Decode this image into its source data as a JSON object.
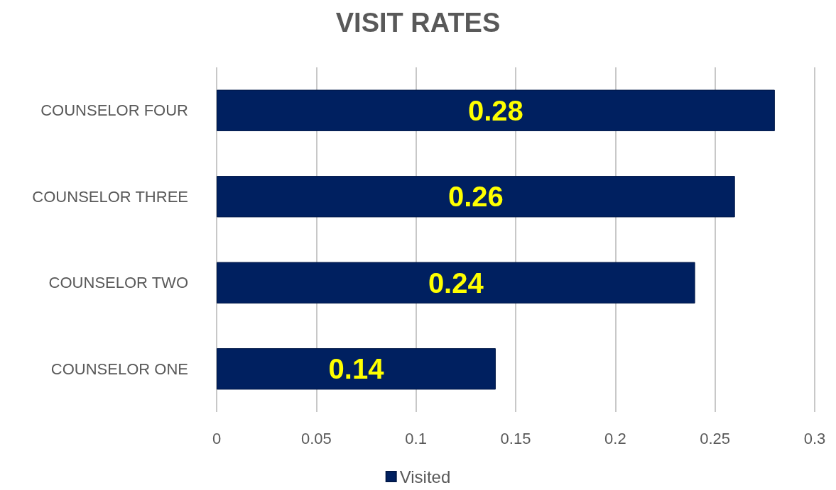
{
  "chart_data": {
    "type": "bar",
    "orientation": "horizontal",
    "title": "VISIT RATES",
    "categories": [
      "COUNSELOR FOUR",
      "COUNSELOR THREE",
      "COUNSELOR TWO",
      "COUNSELOR ONE"
    ],
    "series": [
      {
        "name": "Visited",
        "color": "#002060",
        "values": [
          0.28,
          0.26,
          0.24,
          0.14
        ]
      }
    ],
    "xlim": [
      0,
      0.3
    ],
    "xticks": [
      0,
      0.05,
      0.1,
      0.15,
      0.2,
      0.25,
      0.3
    ],
    "grid": "x",
    "legend": "bottom",
    "data_labels": true
  }
}
